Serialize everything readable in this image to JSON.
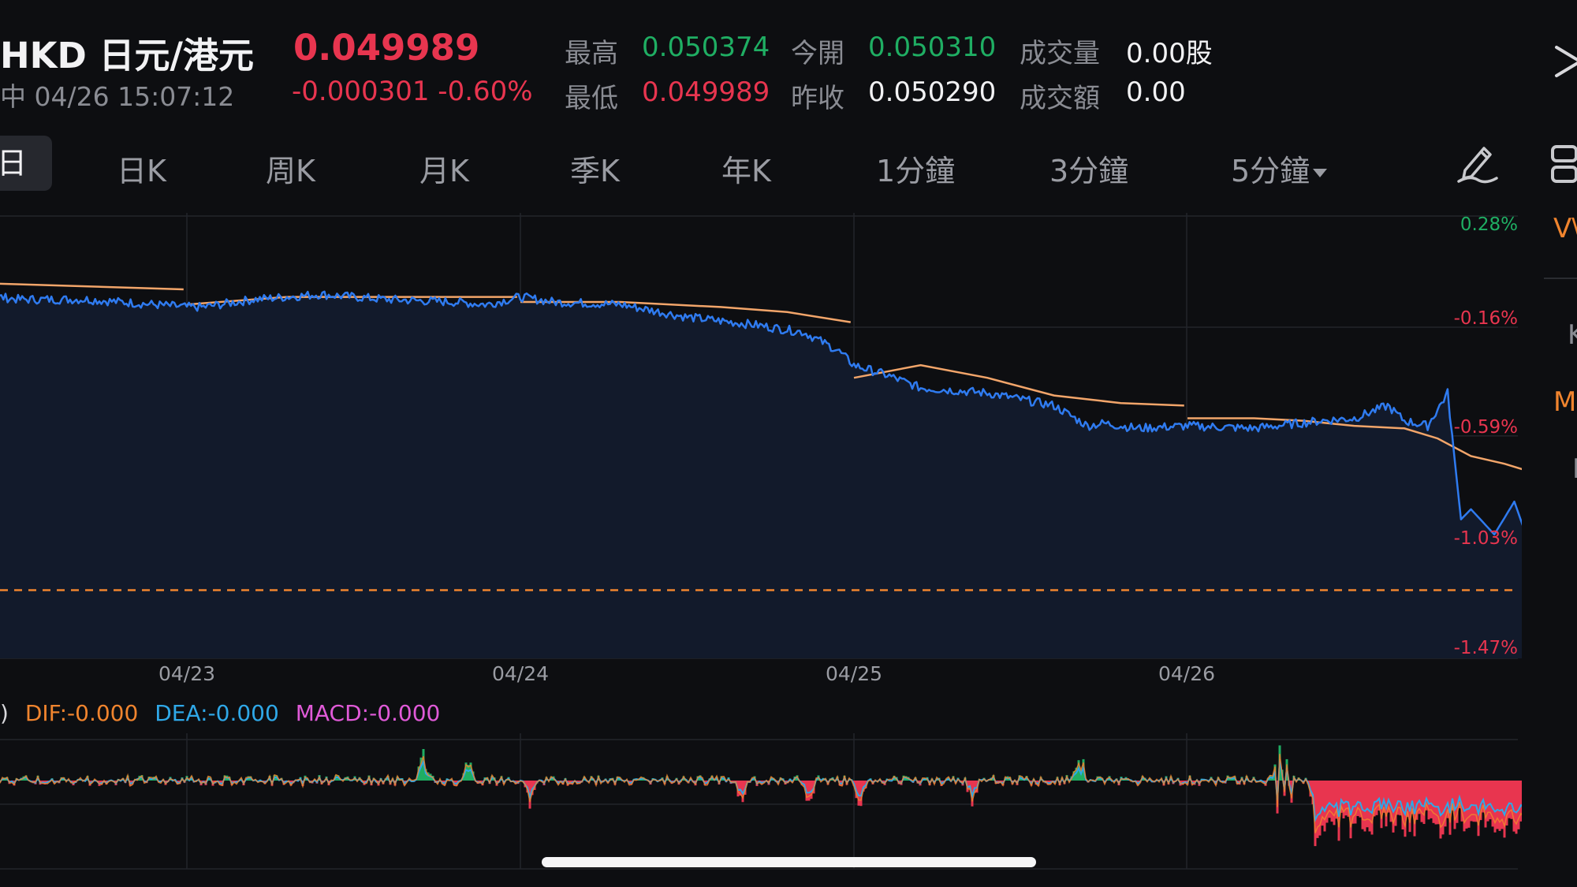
{
  "header": {
    "symbol": "HKD 日元/港元",
    "price": "0.049989",
    "status_time": "中 04/26 15:07:12",
    "change": "-0.000301 -0.60%",
    "stats": {
      "high_label": "最高",
      "high_value": "0.050374",
      "open_label": "今開",
      "open_value": "0.050310",
      "volume_label": "成交量",
      "volume_value": "0.00股",
      "low_label": "最低",
      "low_value": "0.049989",
      "prev_close_label": "昨收",
      "prev_close_value": "0.050290",
      "turnover_label": "成交額",
      "turnover_value": "0.00"
    }
  },
  "tabs": {
    "active": "日",
    "items": [
      "日K",
      "周K",
      "月K",
      "季K",
      "年K",
      "1分鐘",
      "3分鐘",
      "5分鐘"
    ]
  },
  "side_labels": {
    "vwap": "V\\",
    "k": "K",
    "m": "M",
    "pipe": "I"
  },
  "macd_legend": {
    "prefix": ")",
    "dif": "DIF:-0.000",
    "dea": "DEA:-0.000",
    "macd": "MACD:-0.000"
  },
  "colors": {
    "background": "#0d0e11",
    "price_line": "#2f7bf0",
    "area_fill": "#121a2b",
    "avg_line": "#f2a56a",
    "red": "#e8354f",
    "green": "#1fae63",
    "orange": "#f0842e",
    "dea_blue": "#2fa8e8",
    "macd_pink": "#e05ad8"
  },
  "icons": {
    "close": "close-icon",
    "draw": "pencil-draw-icon",
    "layout": "layout-icon"
  },
  "chart_data": {
    "type": "line",
    "y_unit": "percent change",
    "y_ticks": [
      "0.28%",
      "-0.16%",
      "-0.59%",
      "-1.03%",
      "-1.47%"
    ],
    "ylim": [
      -1.47,
      0.28
    ],
    "x_ticks": [
      "04/23",
      "04/24",
      "04/25",
      "04/26"
    ],
    "current_value_pct": -1.2,
    "grid": true,
    "series": [
      {
        "points": [
          [
            -0.1,
            0.05
          ],
          [
            0.1,
            0.0
          ],
          [
            0.3,
            -0.02
          ],
          [
            0.5,
            -0.05
          ],
          [
            0.7,
            -0.05
          ],
          [
            1.0,
            -0.08
          ],
          [
            1.05,
            -0.08
          ],
          [
            1.2,
            -0.05
          ],
          [
            1.4,
            -0.03
          ],
          [
            1.6,
            -0.05
          ],
          [
            1.8,
            -0.06
          ],
          [
            1.9,
            -0.07
          ],
          [
            2.0,
            -0.04
          ],
          [
            2.1,
            -0.06
          ],
          [
            2.3,
            -0.07
          ],
          [
            2.5,
            -0.12
          ],
          [
            2.7,
            -0.15
          ],
          [
            2.85,
            -0.18
          ],
          [
            2.95,
            -0.25
          ],
          [
            3.0,
            -0.31
          ],
          [
            3.1,
            -0.35
          ],
          [
            3.2,
            -0.4
          ],
          [
            3.4,
            -0.42
          ],
          [
            3.6,
            -0.47
          ],
          [
            3.7,
            -0.55
          ],
          [
            3.75,
            -0.54
          ],
          [
            3.85,
            -0.56
          ],
          [
            4.0,
            -0.55
          ],
          [
            4.2,
            -0.56
          ],
          [
            4.4,
            -0.53
          ],
          [
            4.5,
            -0.52
          ],
          [
            4.6,
            -0.47
          ],
          [
            4.65,
            -0.53
          ],
          [
            4.72,
            -0.55
          ],
          [
            4.78,
            -0.42
          ],
          [
            4.82,
            -0.92
          ],
          [
            4.85,
            -0.88
          ],
          [
            4.92,
            -0.98
          ],
          [
            4.98,
            -0.85
          ],
          [
            5.02,
            -1.0
          ],
          [
            5.05,
            -1.2
          ]
        ]
      },
      {
        "points": [
          [
            -0.1,
            0.04
          ],
          [
            0.2,
            0.02
          ],
          [
            0.5,
            0.01
          ],
          [
            0.99,
            -0.01
          ],
          [
            1.0,
            -0.07
          ],
          [
            1.3,
            -0.04
          ],
          [
            1.6,
            -0.04
          ],
          [
            1.99,
            -0.04
          ],
          [
            2.0,
            -0.06
          ],
          [
            2.3,
            -0.06
          ],
          [
            2.6,
            -0.08
          ],
          [
            2.8,
            -0.1
          ],
          [
            2.99,
            -0.14
          ],
          [
            3.0,
            -0.36
          ],
          [
            3.2,
            -0.31
          ],
          [
            3.4,
            -0.36
          ],
          [
            3.6,
            -0.43
          ],
          [
            3.8,
            -0.46
          ],
          [
            3.99,
            -0.47
          ],
          [
            4.0,
            -0.52
          ],
          [
            4.2,
            -0.52
          ],
          [
            4.35,
            -0.53
          ],
          [
            4.5,
            -0.55
          ],
          [
            4.65,
            -0.56
          ],
          [
            4.75,
            -0.6
          ],
          [
            4.85,
            -0.67
          ],
          [
            4.95,
            -0.7
          ],
          [
            5.05,
            -0.74
          ]
        ]
      }
    ]
  }
}
